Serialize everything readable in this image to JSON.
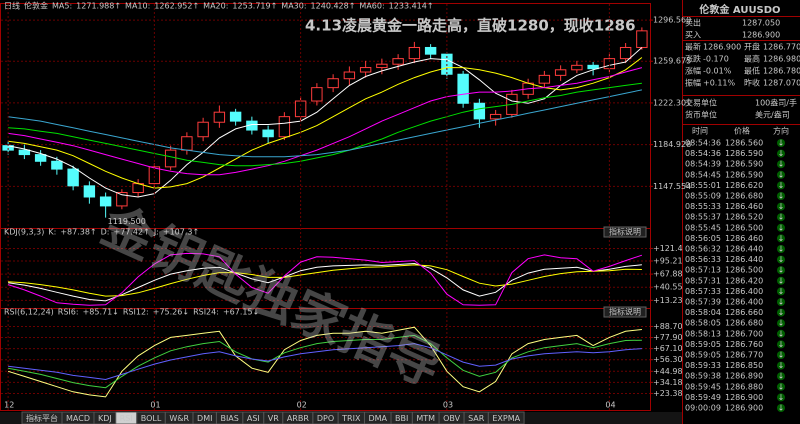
{
  "chart_data": [
    {
      "type": "candlestick",
      "period": "日线",
      "symbol": "伦敦金",
      "title": "4.13凌晨黄金一路走高，直破1280，现收1286",
      "low_label": "1119.500",
      "categories": [
        "12",
        null,
        null,
        null,
        null,
        null,
        null,
        null,
        null,
        "01",
        null,
        null,
        null,
        null,
        null,
        null,
        null,
        null,
        "02",
        null,
        null,
        null,
        null,
        null,
        null,
        null,
        null,
        "03",
        null,
        null,
        null,
        null,
        null,
        null,
        null,
        null,
        null,
        "04",
        null,
        null
      ],
      "candles": [
        [
          1184,
          1188,
          1176,
          1180
        ],
        [
          1180,
          1185,
          1172,
          1176
        ],
        [
          1176,
          1180,
          1166,
          1170
        ],
        [
          1170,
          1174,
          1158,
          1163
        ],
        [
          1163,
          1166,
          1144,
          1148
        ],
        [
          1148,
          1152,
          1132,
          1138
        ],
        [
          1138,
          1142,
          1119.5,
          1130
        ],
        [
          1130,
          1145,
          1127,
          1142
        ],
        [
          1142,
          1154,
          1138,
          1150
        ],
        [
          1150,
          1168,
          1147,
          1165
        ],
        [
          1165,
          1184,
          1162,
          1180
        ],
        [
          1180,
          1196,
          1176,
          1192
        ],
        [
          1192,
          1209,
          1188,
          1205
        ],
        [
          1205,
          1220,
          1200,
          1214
        ],
        [
          1214,
          1217,
          1202,
          1206
        ],
        [
          1206,
          1210,
          1194,
          1198
        ],
        [
          1198,
          1202,
          1186,
          1192
        ],
        [
          1192,
          1214,
          1189,
          1210
        ],
        [
          1210,
          1228,
          1206,
          1224
        ],
        [
          1224,
          1240,
          1220,
          1236
        ],
        [
          1236,
          1248,
          1232,
          1244
        ],
        [
          1244,
          1255,
          1238,
          1250
        ],
        [
          1250,
          1260,
          1245,
          1254
        ],
        [
          1254,
          1262,
          1248,
          1257
        ],
        [
          1257,
          1266,
          1252,
          1262
        ],
        [
          1262,
          1277,
          1258,
          1272
        ],
        [
          1272,
          1275,
          1262,
          1266
        ],
        [
          1266,
          1268,
          1244,
          1248
        ],
        [
          1248,
          1251,
          1218,
          1222
        ],
        [
          1222,
          1226,
          1200,
          1208
        ],
        [
          1208,
          1216,
          1202,
          1212
        ],
        [
          1212,
          1234,
          1209,
          1230
        ],
        [
          1230,
          1244,
          1226,
          1240
        ],
        [
          1240,
          1251,
          1236,
          1247
        ],
        [
          1247,
          1256,
          1242,
          1252
        ],
        [
          1252,
          1260,
          1249,
          1256
        ],
        [
          1256,
          1259,
          1247,
          1253
        ],
        [
          1253,
          1266,
          1250,
          1262
        ],
        [
          1262,
          1276,
          1258,
          1272
        ],
        [
          1272,
          1290,
          1270,
          1286.9
        ]
      ],
      "series": [
        {
          "name": "MA5:",
          "last_label": "1271.988↑",
          "color": "#ffffff",
          "values": [
            1184,
            1181,
            1177,
            1172,
            1165,
            1155,
            1146,
            1140,
            1138,
            1141,
            1153,
            1167,
            1178,
            1191,
            1199,
            1203,
            1203,
            1204,
            1206,
            1214,
            1226,
            1238,
            1246,
            1251,
            1255,
            1259,
            1262,
            1261,
            1254,
            1243,
            1231,
            1224,
            1222,
            1226,
            1238,
            1247,
            1252,
            1256,
            1259,
            1272
          ]
        },
        {
          "name": "MA10:",
          "last_label": "1262.952↑",
          "color": "#ffff00",
          "values": [
            1188,
            1186,
            1183,
            1180,
            1175,
            1168,
            1161,
            1155,
            1150,
            1146,
            1147,
            1150,
            1156,
            1164,
            1172,
            1180,
            1186,
            1191,
            1196,
            1202,
            1210,
            1218,
            1226,
            1232,
            1239,
            1245,
            1250,
            1254,
            1254,
            1252,
            1249,
            1245,
            1240,
            1236,
            1234,
            1236,
            1240,
            1245,
            1252,
            1263
          ]
        },
        {
          "name": "MA20:",
          "last_label": "1253.719↑",
          "color": "#ff00ff",
          "values": [
            1195,
            1193,
            1190,
            1187,
            1184,
            1180,
            1176,
            1172,
            1168,
            1164,
            1161,
            1159,
            1158,
            1158,
            1160,
            1163,
            1166,
            1170,
            1175,
            1180,
            1186,
            1192,
            1199,
            1206,
            1212,
            1218,
            1224,
            1228,
            1230,
            1232,
            1232,
            1233,
            1235,
            1236,
            1238,
            1240,
            1243,
            1246,
            1250,
            1254
          ]
        },
        {
          "name": "MA30:",
          "last_label": "1240.428↑",
          "color": "#00e000",
          "values": [
            1200,
            1199,
            1197,
            1195,
            1192,
            1189,
            1186,
            1183,
            1180,
            1177,
            1174,
            1171,
            1169,
            1167,
            1166,
            1166,
            1167,
            1168,
            1170,
            1173,
            1176,
            1180,
            1185,
            1190,
            1196,
            1201,
            1206,
            1210,
            1214,
            1217,
            1219,
            1221,
            1224,
            1227,
            1229,
            1232,
            1234,
            1236,
            1238,
            1240
          ]
        },
        {
          "name": "MA60:",
          "last_label": "1233.414↑",
          "color": "#3aa6d0",
          "values": [
            1210,
            1208,
            1206,
            1203,
            1200,
            1197,
            1194,
            1191,
            1188,
            1185,
            1182,
            1180,
            1178,
            1176,
            1175,
            1174,
            1174,
            1174,
            1175,
            1176,
            1178,
            1180,
            1183,
            1186,
            1189,
            1192,
            1195,
            1198,
            1201,
            1204,
            1207,
            1210,
            1213,
            1216,
            1219,
            1222,
            1225,
            1228,
            1231,
            1234
          ]
        }
      ],
      "ylim": [
        1112,
        1302
      ],
      "yticks": [
        {
          "value": 1296.56,
          "label": "1296.560"
        },
        {
          "value": 1259.675,
          "label": "1259.675"
        },
        {
          "value": 1222.301,
          "label": "1222.301"
        },
        {
          "value": 1184.928,
          "label": "1184.928"
        },
        {
          "value": 1147.554,
          "label": "1147.554"
        }
      ],
      "grid": true
    },
    {
      "type": "line",
      "panel_title": "KDJ(9,3,3)",
      "button_label": "指标说明",
      "series": [
        {
          "name": "K:",
          "last_label": "+87.38↑",
          "color": "#ffffff",
          "values": [
            50,
            45,
            38,
            30,
            22,
            15,
            12,
            25,
            40,
            55,
            68,
            75,
            80,
            82,
            70,
            58,
            50,
            62,
            75,
            82,
            85,
            86,
            87,
            86,
            88,
            90,
            80,
            60,
            35,
            22,
            30,
            55,
            70,
            78,
            80,
            82,
            74,
            78,
            84,
            87.38
          ]
        },
        {
          "name": "D:",
          "last_label": "+77.42↑",
          "color": "#ffff00",
          "values": [
            52,
            50,
            46,
            41,
            35,
            28,
            22,
            23,
            29,
            38,
            48,
            57,
            65,
            71,
            71,
            67,
            61,
            61,
            66,
            71,
            76,
            79,
            82,
            83,
            85,
            87,
            85,
            77,
            63,
            49,
            43,
            47,
            55,
            63,
            69,
            73,
            74,
            75,
            78,
            77.42
          ]
        },
        {
          "name": "J:",
          "last_label": "+107.3↑",
          "color": "#ff00ff",
          "values": [
            46,
            35,
            22,
            8,
            5,
            3,
            4,
            29,
            62,
            89,
            108,
            111,
            110,
            104,
            68,
            40,
            28,
            64,
            93,
            104,
            103,
            100,
            97,
            92,
            94,
            96,
            70,
            26,
            4,
            3,
            4,
            71,
            100,
            108,
            102,
            100,
            74,
            84,
            96,
            107.3
          ]
        }
      ],
      "ylim": [
        1.4,
        139
      ],
      "yticks": [
        {
          "value": 121.4,
          "label": "+121.4"
        },
        {
          "value": 95.21,
          "label": "+95.21"
        },
        {
          "value": 67.88,
          "label": "+67.88"
        },
        {
          "value": 40.55,
          "label": "+40.55"
        },
        {
          "value": 13.23,
          "label": "+13.23"
        }
      ],
      "grid": true
    },
    {
      "type": "line",
      "panel_title": "RSI(6,12,24)",
      "button_label": "指标说明",
      "watermark": "金钥匙独家指导",
      "series": [
        {
          "name": "RSI6:",
          "last_label": "+85.71↓",
          "color": "#ffff80",
          "values": [
            45,
            40,
            35,
            30,
            25,
            22,
            20,
            45,
            60,
            70,
            78,
            80,
            82,
            84,
            60,
            48,
            44,
            66,
            75,
            80,
            82,
            82,
            84,
            82,
            85,
            88,
            70,
            45,
            30,
            25,
            35,
            62,
            72,
            76,
            78,
            80,
            70,
            78,
            84,
            85.71
          ]
        },
        {
          "name": "RSI12:",
          "last_label": "+75.26↓",
          "color": "#40d040",
          "values": [
            48,
            45,
            42,
            38,
            34,
            31,
            29,
            40,
            50,
            58,
            65,
            69,
            72,
            74,
            64,
            57,
            54,
            63,
            68,
            72,
            74,
            75,
            76,
            76,
            78,
            80,
            72,
            58,
            46,
            40,
            44,
            58,
            64,
            68,
            70,
            72,
            68,
            72,
            75,
            75.26
          ]
        },
        {
          "name": "RSI24:",
          "last_label": "+67.15↓",
          "color": "#6060ff",
          "values": [
            50,
            48,
            46,
            44,
            41,
            39,
            37,
            42,
            47,
            52,
            56,
            59,
            62,
            64,
            60,
            57,
            55,
            59,
            62,
            64,
            66,
            67,
            68,
            69,
            70,
            72,
            68,
            61,
            54,
            50,
            51,
            57,
            60,
            62,
            63,
            64,
            63,
            64,
            66,
            67.15
          ]
        }
      ],
      "ylim": [
        17,
        95
      ],
      "yticks": [
        {
          "value": 88.7,
          "label": "+88.70"
        },
        {
          "value": 77.9,
          "label": "+77.90"
        },
        {
          "value": 67.1,
          "label": "+67.10"
        },
        {
          "value": 56.3,
          "label": "+56.30"
        },
        {
          "value": 44.98,
          "label": "+44.98"
        },
        {
          "value": 34.18,
          "label": "+34.18"
        },
        {
          "value": 23.38,
          "label": "+23.38"
        }
      ],
      "grid": true
    }
  ],
  "tabs": [
    "指标平台",
    "MACD",
    "KDJ",
    "RSI",
    "BOLL",
    "W&R",
    "DMI",
    "BIAS",
    "ASI",
    "VR",
    "ARBR",
    "DPO",
    "TRIX",
    "DMA",
    "BBI",
    "MTM",
    "OBV",
    "SAR",
    "EXPMA"
  ],
  "quote": {
    "title": "伦敦金 AUUSDO",
    "bidask": [
      [
        "卖出",
        "1287.050"
      ],
      [
        "买入",
        "1286.900"
      ]
    ],
    "stats": [
      [
        "最新",
        "1286.900",
        "开盘",
        "1286.770"
      ],
      [
        "涨跌",
        "-0.170",
        "最高",
        "1286.980"
      ],
      [
        "涨幅",
        "-0.01%",
        "最低",
        "1286.780"
      ],
      [
        "振幅",
        "+0.11%",
        "昨收",
        "1287.070"
      ]
    ],
    "units": [
      [
        "交易单位",
        "100盎司/手"
      ],
      [
        "货币单位",
        "美元/盎司"
      ]
    ],
    "ticks_header": [
      "时间",
      "价格",
      "方向"
    ],
    "ticks": [
      [
        "08:54:36",
        "1286.560",
        "↓"
      ],
      [
        "08:54:36",
        "1286.590",
        "↓"
      ],
      [
        "08:54:39",
        "1286.590",
        "↓"
      ],
      [
        "08:54:45",
        "1286.590",
        "↓"
      ],
      [
        "08:55:01",
        "1286.620",
        "↓"
      ],
      [
        "08:55:09",
        "1286.680",
        "↓"
      ],
      [
        "08:55:33",
        "1286.460",
        "↓"
      ],
      [
        "08:55:37",
        "1286.520",
        "↓"
      ],
      [
        "08:55:45",
        "1286.500",
        "↓"
      ],
      [
        "08:56:05",
        "1286.460",
        "↓"
      ],
      [
        "08:56:32",
        "1286.440",
        "↓"
      ],
      [
        "08:56:33",
        "1286.440",
        "↓"
      ],
      [
        "08:57:13",
        "1286.500",
        "↓"
      ],
      [
        "08:57:31",
        "1286.420",
        "↓"
      ],
      [
        "08:57:33",
        "1286.400",
        "↓"
      ],
      [
        "08:57:39",
        "1286.400",
        "↓"
      ],
      [
        "08:58:04",
        "1286.660",
        "↓"
      ],
      [
        "08:58:05",
        "1286.680",
        "↓"
      ],
      [
        "08:58:13",
        "1286.700",
        "↓"
      ],
      [
        "08:59:05",
        "1286.760",
        "↓"
      ],
      [
        "08:59:05",
        "1286.770",
        "↓"
      ],
      [
        "08:59:33",
        "1286.850",
        "↓"
      ],
      [
        "08:59:38",
        "1286.890",
        "↓"
      ],
      [
        "08:59:45",
        "1286.880",
        "↓"
      ],
      [
        "08:59:49",
        "1286.900",
        "↓"
      ],
      [
        "09:00:09",
        "1286.900",
        "↓"
      ]
    ]
  }
}
